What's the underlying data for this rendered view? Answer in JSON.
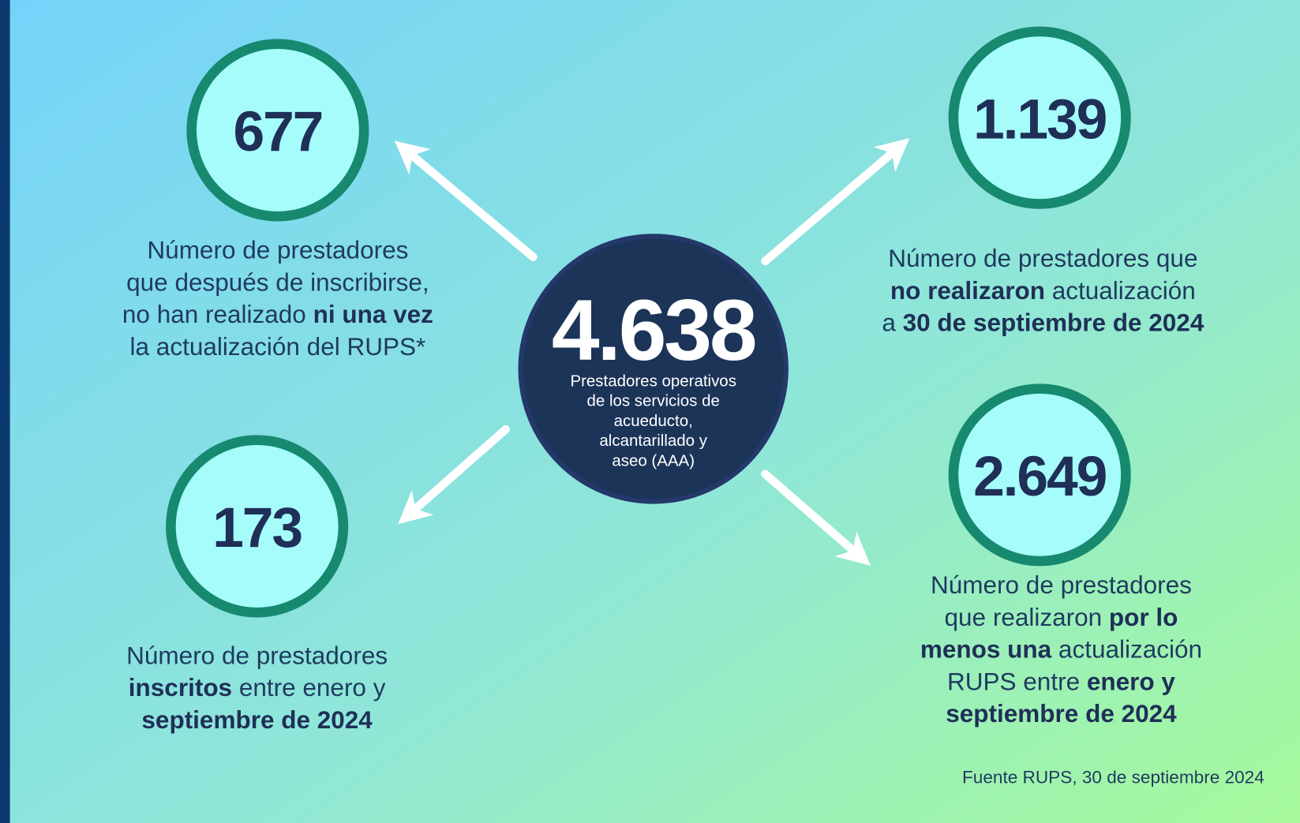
{
  "center": {
    "value": "4.638",
    "label": [
      "Prestadores operativos",
      "de los servicios de",
      "acueducto,",
      "alcantarillado y",
      "aseo (AAA)"
    ]
  },
  "nodes": [
    {
      "value": "677",
      "description": [
        [
          {
            "text": "Número de prestadores",
            "bold": false
          }
        ],
        [
          {
            "text": "que después de inscribirse,",
            "bold": false
          }
        ],
        [
          {
            "text": "no han realizado ",
            "bold": false
          },
          {
            "text": "ni una vez",
            "bold": true
          }
        ],
        [
          {
            "text": "la actualización del RUPS*",
            "bold": false
          }
        ]
      ]
    },
    {
      "value": "1.139",
      "description": [
        [
          {
            "text": "Número de prestadores que",
            "bold": false
          }
        ],
        [
          {
            "text": "no realizaron",
            "bold": true
          },
          {
            "text": " actualización",
            "bold": false
          }
        ],
        [
          {
            "text": "a ",
            "bold": false
          },
          {
            "text": "30 de septiembre de 2024",
            "bold": true
          }
        ]
      ]
    },
    {
      "value": "173",
      "description": [
        [
          {
            "text": "Número de prestadores",
            "bold": false
          }
        ],
        [
          {
            "text": "inscritos",
            "bold": true
          },
          {
            "text": " entre enero y",
            "bold": false
          }
        ],
        [
          {
            "text": "septiembre de 2024",
            "bold": true
          }
        ]
      ]
    },
    {
      "value": "2.649",
      "description": [
        [
          {
            "text": "Número de prestadores",
            "bold": false
          }
        ],
        [
          {
            "text": "que realizaron ",
            "bold": false
          },
          {
            "text": "por lo",
            "bold": true
          }
        ],
        [
          {
            "text": "menos una",
            "bold": true
          },
          {
            "text": " actualización",
            "bold": false
          }
        ],
        [
          {
            "text": "RUPS entre ",
            "bold": false
          },
          {
            "text": "enero y",
            "bold": true
          }
        ],
        [
          {
            "text": "septiembre de 2024",
            "bold": true
          }
        ]
      ]
    }
  ],
  "source": "Fuente RUPS, 30 de septiembre 2024"
}
